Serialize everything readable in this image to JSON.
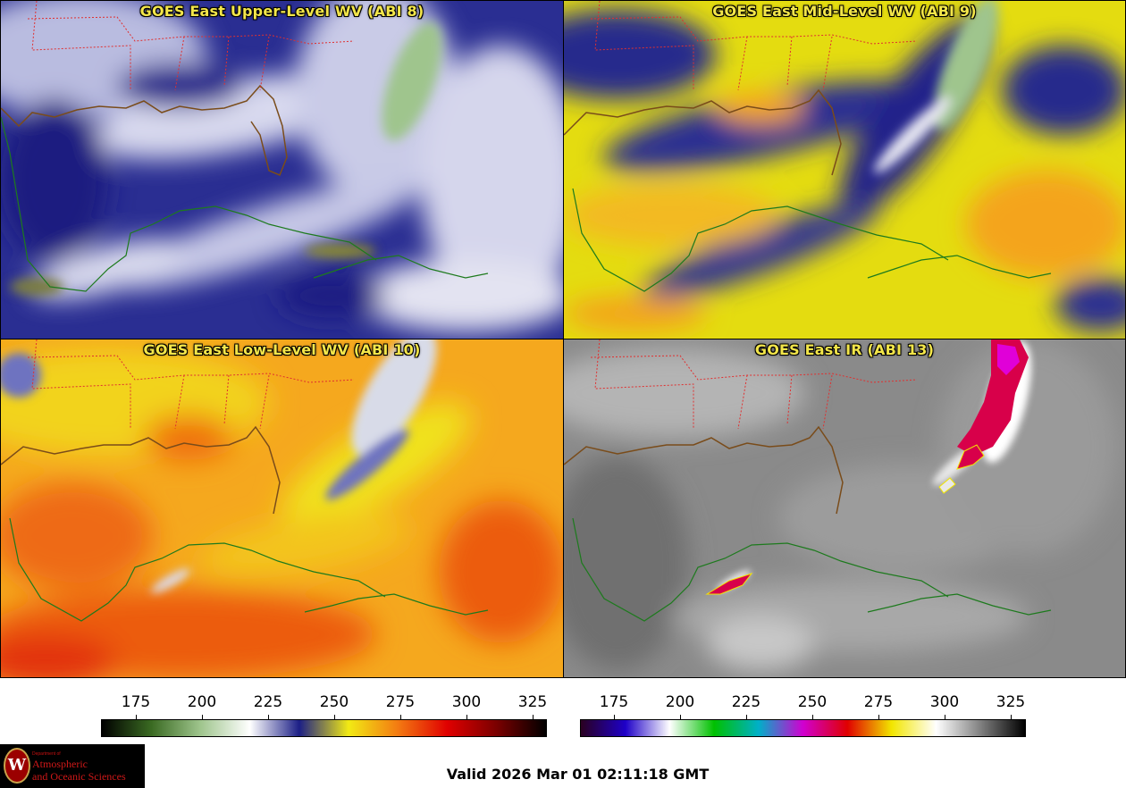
{
  "panels": [
    {
      "title": "GOES East Upper-Level WV (ABI 8)",
      "scheme": "wv-upper",
      "colors": [
        "#1c1f86",
        "#4a4fb0",
        "#9da2d6",
        "#e8e8f2"
      ]
    },
    {
      "title": "GOES East Mid-Level WV (ABI 9)",
      "scheme": "wv-mid",
      "colors": [
        "#f2ea14",
        "#d6d600",
        "#22268a",
        "#f4a41a"
      ]
    },
    {
      "title": "GOES East Low-Level WV (ABI 10)",
      "scheme": "wv-low",
      "colors": [
        "#f7a91d",
        "#f37a12",
        "#e23a0a",
        "#f2ea14"
      ]
    },
    {
      "title": "GOES East IR (ABI 13)",
      "scheme": "ir",
      "colors": [
        "#7d7d7d",
        "#9a9a9a",
        "#d8d8d8",
        "#e0004a"
      ]
    }
  ],
  "colorbars": [
    {
      "name": "wv-colorbar",
      "ticks": [
        "175",
        "200",
        "225",
        "250",
        "275",
        "300",
        "325"
      ],
      "stops": [
        "#000000",
        "#3a6a22",
        "#9fc58d",
        "#ffffff",
        "#1c1f86",
        "#f2ea14",
        "#f37a12",
        "#e00000",
        "#7a0000",
        "#000000"
      ]
    },
    {
      "name": "ir-colorbar",
      "ticks": [
        "175",
        "200",
        "225",
        "250",
        "275",
        "300",
        "325"
      ],
      "stops": [
        "#2a0020",
        "#1e00c8",
        "#ffffff",
        "#00c000",
        "#00b0c8",
        "#d000d0",
        "#e00000",
        "#f2e600",
        "#ffffff",
        "#808080",
        "#000000"
      ]
    }
  ],
  "logo": {
    "line0": "Department of",
    "line1": "Atmospheric",
    "line2": "and Oceanic Sciences",
    "seal": "W"
  },
  "footer": {
    "valid": "Valid 2026 Mar 01 02:11:18 GMT"
  }
}
